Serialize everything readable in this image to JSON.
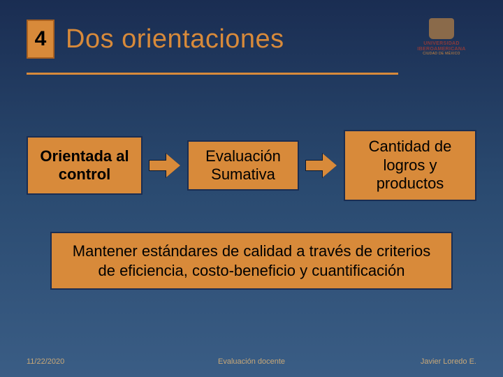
{
  "slide": {
    "number": "4",
    "title": "Dos orientaciones"
  },
  "logo": {
    "line1": "UNIVERSIDAD",
    "line2": "IBEROAMERICANA",
    "sub": "CIUDAD DE MÉXICO"
  },
  "flow": {
    "box1": "Orientada al control",
    "box2": "Evaluación Sumativa",
    "box3": "Cantidad de logros y productos"
  },
  "description": "Mantener estándares de calidad a través de criterios de eficiencia, costo-beneficio y cuantificación",
  "footer": {
    "date": "11/22/2020",
    "center": "Evaluación docente",
    "author": "Javier Loredo E."
  },
  "colors": {
    "accent": "#d88a3a",
    "bg_top": "#1a2d52",
    "bg_bottom": "#3a5d85",
    "border": "#1a2d52",
    "text": "#000000"
  }
}
